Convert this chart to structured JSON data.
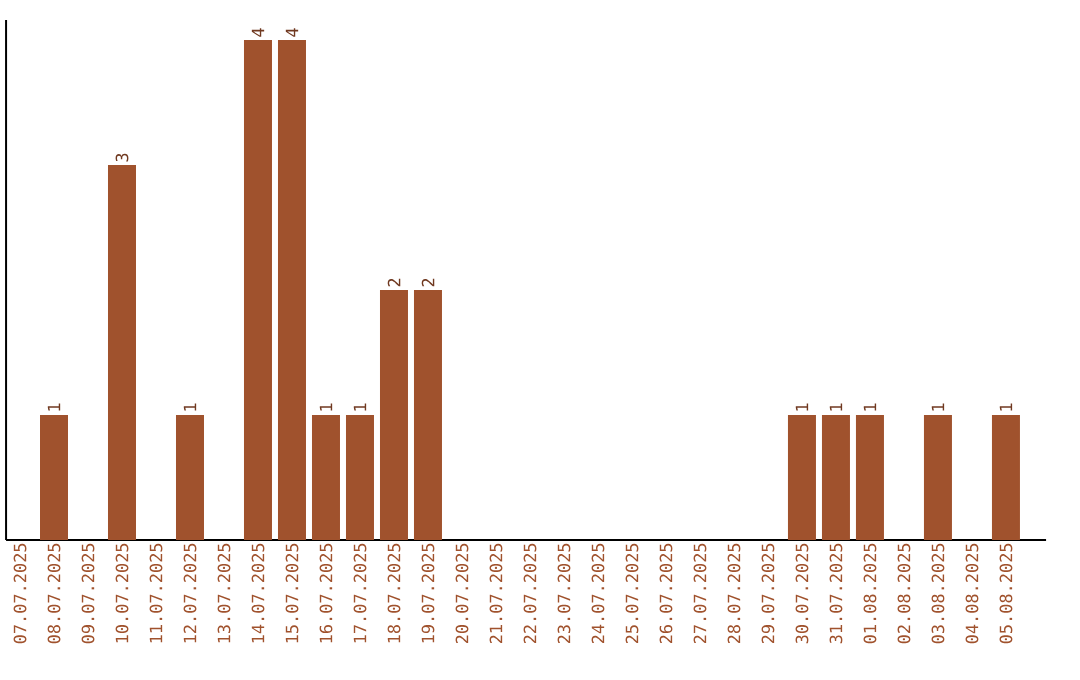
{
  "chart_data": {
    "type": "bar",
    "categories": [
      "07.07.2025",
      "08.07.2025",
      "09.07.2025",
      "10.07.2025",
      "11.07.2025",
      "12.07.2025",
      "13.07.2025",
      "14.07.2025",
      "15.07.2025",
      "16.07.2025",
      "17.07.2025",
      "18.07.2025",
      "19.07.2025",
      "20.07.2025",
      "21.07.2025",
      "22.07.2025",
      "23.07.2025",
      "24.07.2025",
      "25.07.2025",
      "26.07.2025",
      "27.07.2025",
      "28.07.2025",
      "29.07.2025",
      "30.07.2025",
      "31.07.2025",
      "01.08.2025",
      "02.08.2025",
      "03.08.2025",
      "04.08.2025",
      "05.08.2025"
    ],
    "values": [
      0,
      1,
      0,
      3,
      0,
      1,
      0,
      4,
      4,
      1,
      1,
      2,
      2,
      0,
      0,
      0,
      0,
      0,
      0,
      0,
      0,
      0,
      0,
      1,
      1,
      1,
      0,
      1,
      0,
      1
    ],
    "value_labels": [
      null,
      "1",
      null,
      "3",
      null,
      "1",
      null,
      "4",
      "4",
      "1",
      "1",
      "2",
      "2",
      null,
      null,
      null,
      null,
      null,
      null,
      null,
      null,
      null,
      null,
      "1",
      "1",
      "1",
      null,
      "1",
      null,
      "1"
    ],
    "color": "#a0522d",
    "ylim": [
      0,
      4.16
    ],
    "tick_labels": "x"
  }
}
